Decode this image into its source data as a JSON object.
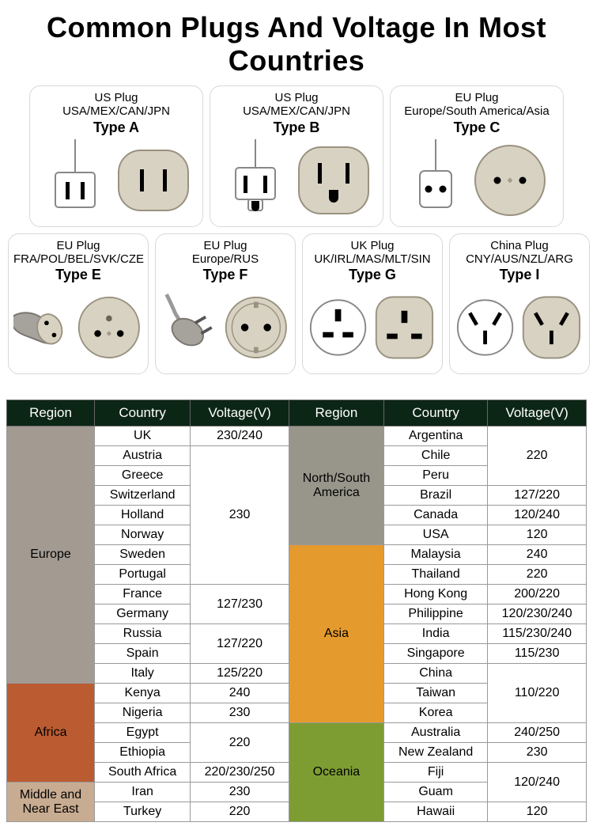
{
  "title": "Common Plugs And Voltage In Most Countries",
  "plugs": {
    "row1": [
      {
        "label": "US Plug",
        "countries": "USA/MEX/CAN/JPN",
        "type": "Type A"
      },
      {
        "label": "US Plug",
        "countries": "USA/MEX/CAN/JPN",
        "type": "Type B"
      },
      {
        "label": "EU Plug",
        "countries": "Europe/South America/Asia",
        "type": "Type C"
      }
    ],
    "row2": [
      {
        "label": "EU Plug",
        "countries": "FRA/POL/BEL/SVK/CZE",
        "type": "Type E"
      },
      {
        "label": "EU Plug",
        "countries": "Europe/RUS",
        "type": "Type F"
      },
      {
        "label": "UK Plug",
        "countries": "UK/IRL/MAS/MLT/SIN",
        "type": "Type G"
      },
      {
        "label": "China Plug",
        "countries": "CNY/AUS/NZL/ARG",
        "type": "Type I"
      }
    ]
  },
  "colors": {
    "socket_fill": "#d8d2c3",
    "socket_stroke": "#9a9280",
    "plug_fill": "#ffffff",
    "plug_stroke": "#888888",
    "header_bg": "#0c2616",
    "header_fg": "#ffffff",
    "border": "#999999",
    "region_europe": "#a39b92",
    "region_africa": "#bb5b32",
    "region_middle_east": "#c8ac91",
    "region_nsa": "#98968a",
    "region_asia": "#e59a2e",
    "region_oceania": "#7d9d33"
  },
  "table": {
    "headers": [
      "Region",
      "Country",
      "Voltage(V)",
      "Region",
      "Country",
      "Voltage(V)"
    ],
    "left": [
      {
        "region": "Europe",
        "region_color": "#a39b92",
        "rows": [
          {
            "country": "UK",
            "voltage": "230/240",
            "vspan": 1
          },
          {
            "country": "Austria",
            "voltage": "230",
            "vspan": 7
          },
          {
            "country": "Greece"
          },
          {
            "country": "Switzerland"
          },
          {
            "country": "Holland"
          },
          {
            "country": "Norway"
          },
          {
            "country": "Sweden"
          },
          {
            "country": "Portugal"
          },
          {
            "country": "France",
            "voltage": "127/230",
            "vspan": 2
          },
          {
            "country": "Germany"
          },
          {
            "country": "Russia",
            "voltage": "127/220",
            "vspan": 2
          },
          {
            "country": "Spain"
          },
          {
            "country": "Italy",
            "voltage": "125/220",
            "vspan": 1
          }
        ]
      },
      {
        "region": "Africa",
        "region_color": "#bb5b32",
        "rows": [
          {
            "country": "Kenya",
            "voltage": "240",
            "vspan": 1
          },
          {
            "country": "Nigeria",
            "voltage": "230",
            "vspan": 1
          },
          {
            "country": "Egypt",
            "voltage": "220",
            "vspan": 2
          },
          {
            "country": "Ethiopia"
          },
          {
            "country": "South Africa",
            "voltage": "220/230/250",
            "vspan": 1
          }
        ]
      },
      {
        "region": "Middle and Near East",
        "region_color": "#c8ac91",
        "rows": [
          {
            "country": "Iran",
            "voltage": "230",
            "vspan": 1
          },
          {
            "country": "Turkey",
            "voltage": "220",
            "vspan": 1
          }
        ]
      }
    ],
    "right": [
      {
        "region": "North/South America",
        "region_color": "#98968a",
        "rows": [
          {
            "country": "Argentina",
            "voltage": "220",
            "vspan": 3
          },
          {
            "country": "Chile"
          },
          {
            "country": "Peru"
          },
          {
            "country": "Brazil",
            "voltage": "127/220",
            "vspan": 1
          },
          {
            "country": "Canada",
            "voltage": "120/240",
            "vspan": 1
          },
          {
            "country": "USA",
            "voltage": "120",
            "vspan": 1
          }
        ]
      },
      {
        "region": "Asia",
        "region_color": "#e59a2e",
        "rows": [
          {
            "country": "Malaysia",
            "voltage": "240",
            "vspan": 1
          },
          {
            "country": "Thailand",
            "voltage": "220",
            "vspan": 1
          },
          {
            "country": "Hong Kong",
            "voltage": "200/220",
            "vspan": 1
          },
          {
            "country": "Philippine",
            "voltage": "120/230/240",
            "vspan": 1
          },
          {
            "country": "India",
            "voltage": "115/230/240",
            "vspan": 1
          },
          {
            "country": "Singapore",
            "voltage": "115/230",
            "vspan": 1
          },
          {
            "country": "China",
            "voltage": "110/220",
            "vspan": 3
          },
          {
            "country": "Taiwan"
          },
          {
            "country": "Korea"
          }
        ]
      },
      {
        "region": "Oceania",
        "region_color": "#7d9d33",
        "rows": [
          {
            "country": "Australia",
            "voltage": "240/250",
            "vspan": 1
          },
          {
            "country": "New Zealand",
            "voltage": "230",
            "vspan": 1
          },
          {
            "country": "Fiji",
            "voltage": "120/240",
            "vspan": 2
          },
          {
            "country": "Guam"
          },
          {
            "country": "Hawaii",
            "voltage": "120",
            "vspan": 1
          }
        ]
      }
    ]
  }
}
